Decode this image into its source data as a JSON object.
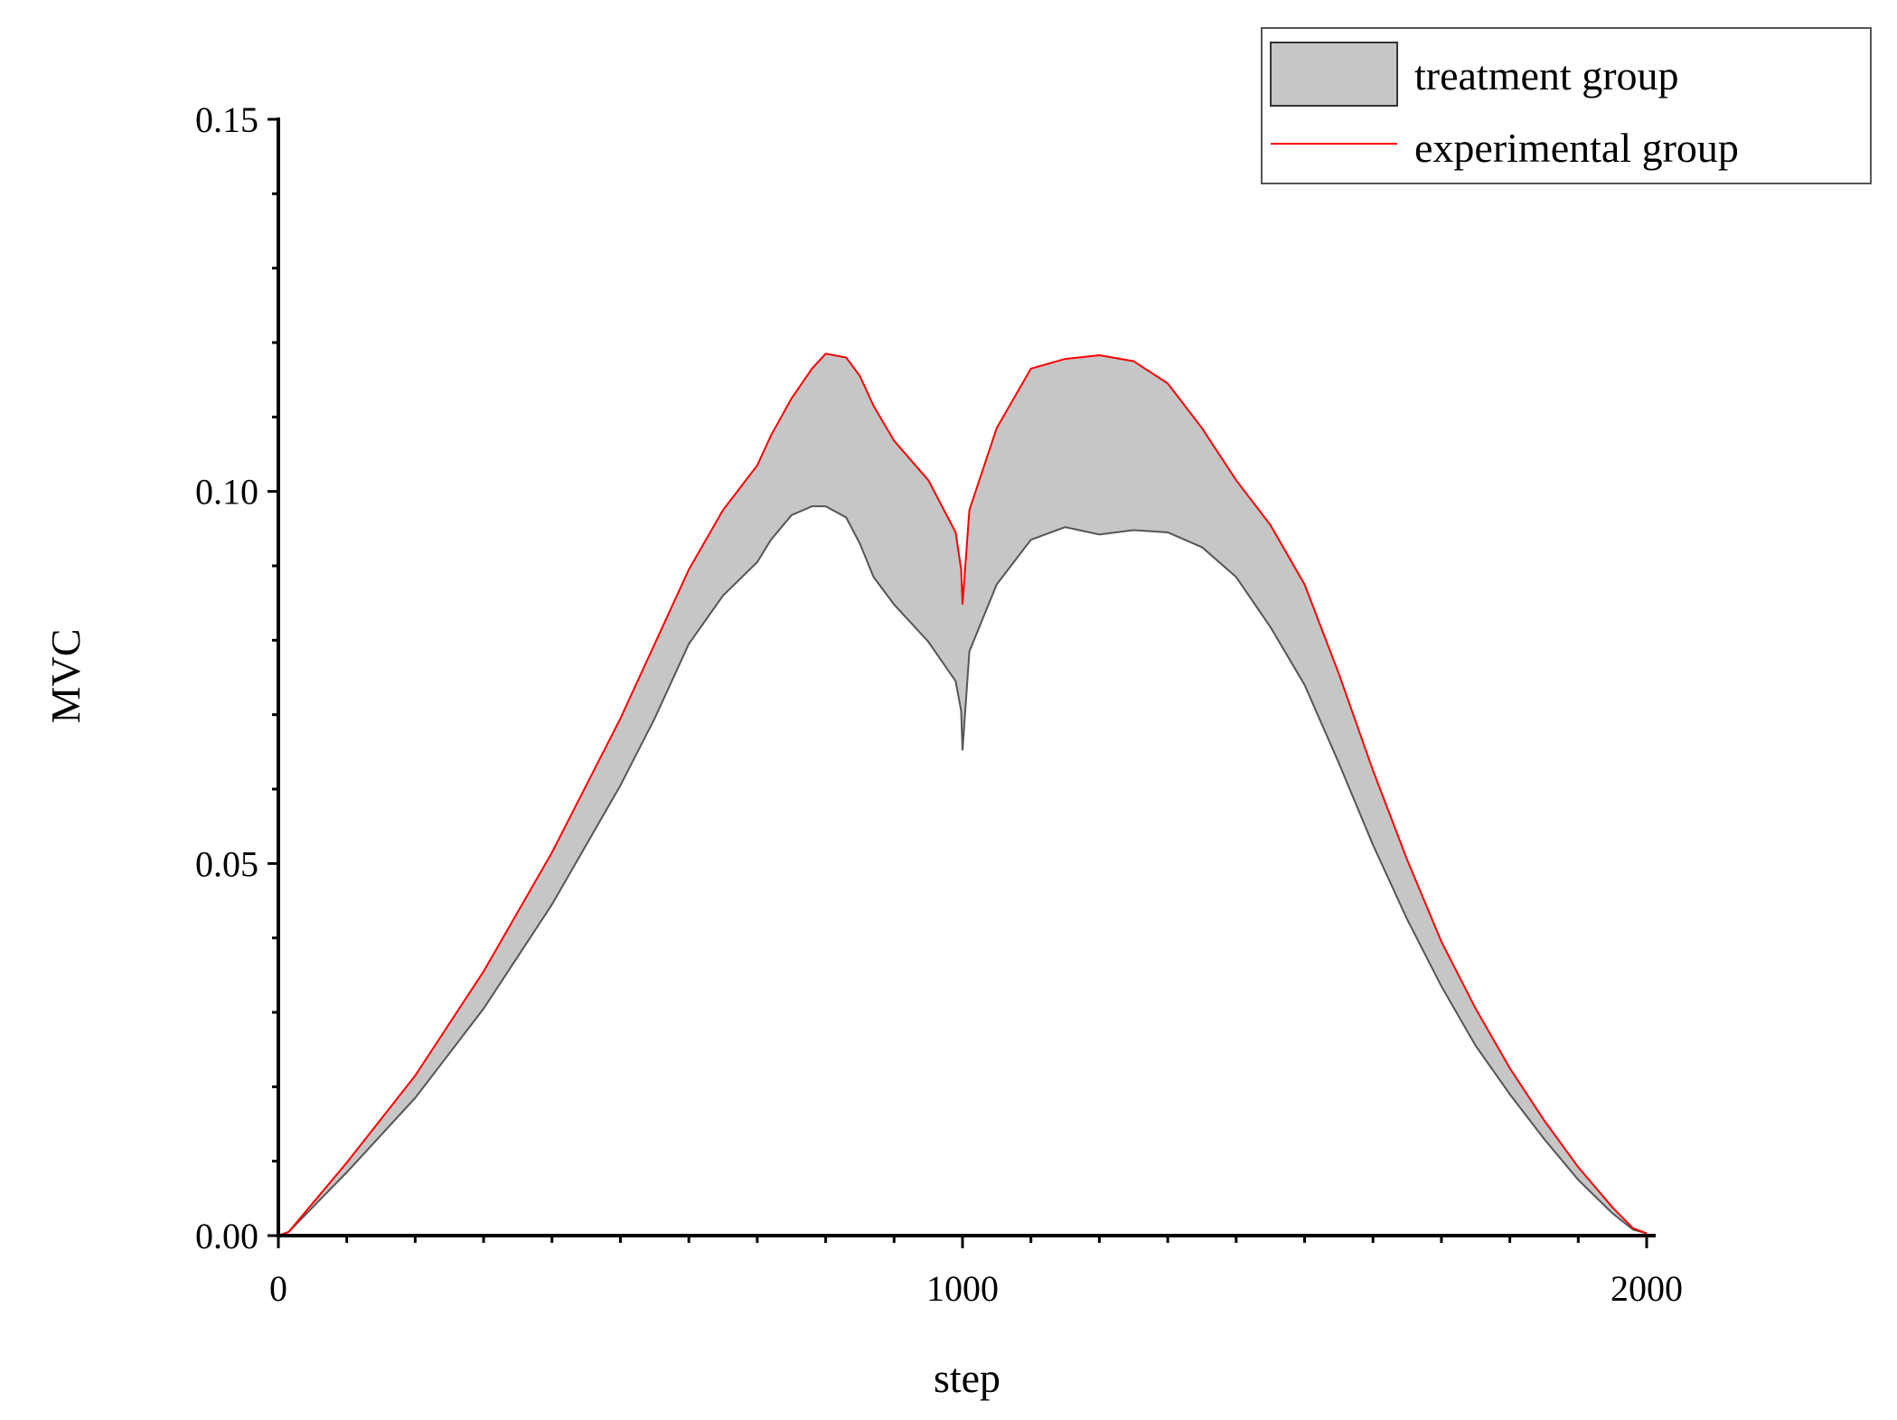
{
  "chart_data": {
    "type": "area",
    "title": "",
    "xlabel": "step",
    "ylabel": "MVC",
    "xlim": [
      0,
      2000
    ],
    "ylim": [
      0,
      0.15
    ],
    "x_ticks": [
      {
        "value": 0,
        "label": "0"
      },
      {
        "value": 1000,
        "label": "1000"
      },
      {
        "value": 2000,
        "label": "2000"
      }
    ],
    "y_ticks": [
      {
        "value": 0,
        "label": "0.00"
      },
      {
        "value": 0.05,
        "label": "0.05"
      },
      {
        "value": 0.1,
        "label": "0.10"
      },
      {
        "value": 0.15,
        "label": "0.15"
      }
    ],
    "x_minor_step": 100,
    "y_minor_step": 0.01,
    "grid": false,
    "legend_position": "top-right",
    "series": [
      {
        "name": "treatment group",
        "kind": "band",
        "fill": "#c6c6c6",
        "edge": "#555555",
        "x": [
          0,
          15,
          100,
          200,
          300,
          400,
          500,
          550,
          600,
          650,
          700,
          720,
          750,
          780,
          800,
          830,
          850,
          870,
          900,
          950,
          990,
          998,
          1000,
          1010,
          1050,
          1100,
          1150,
          1200,
          1250,
          1300,
          1350,
          1400,
          1450,
          1500,
          1550,
          1600,
          1650,
          1700,
          1750,
          1800,
          1850,
          1900,
          1950,
          1980,
          2000
        ],
        "lower": [
          0,
          0.0005,
          0.0085,
          0.0185,
          0.0305,
          0.0445,
          0.0605,
          0.0695,
          0.0795,
          0.086,
          0.0905,
          0.0935,
          0.0968,
          0.098,
          0.098,
          0.0965,
          0.093,
          0.0885,
          0.0848,
          0.0798,
          0.0745,
          0.0705,
          0.0652,
          0.0785,
          0.0875,
          0.0935,
          0.0952,
          0.0942,
          0.0948,
          0.0945,
          0.0925,
          0.0885,
          0.0818,
          0.074,
          0.0635,
          0.0525,
          0.0425,
          0.0335,
          0.0255,
          0.019,
          0.013,
          0.0075,
          0.003,
          0.0008,
          0.0003
        ],
        "upper": [
          0,
          0.0005,
          0.0098,
          0.0215,
          0.0355,
          0.0515,
          0.0695,
          0.0795,
          0.0895,
          0.0975,
          0.1035,
          0.1075,
          0.1125,
          0.1165,
          0.1185,
          0.118,
          0.1155,
          0.1115,
          0.1068,
          0.1015,
          0.0945,
          0.0895,
          0.0848,
          0.0975,
          0.1085,
          0.1165,
          0.1178,
          0.1183,
          0.1175,
          0.1145,
          0.1085,
          0.1015,
          0.0955,
          0.0875,
          0.0755,
          0.0625,
          0.0505,
          0.0395,
          0.0305,
          0.0225,
          0.0155,
          0.0092,
          0.0038,
          0.001,
          0.0003
        ]
      },
      {
        "name": "experimental group",
        "kind": "line",
        "color": "#ff0000",
        "x": [
          0,
          15,
          100,
          200,
          300,
          400,
          500,
          550,
          600,
          650,
          700,
          720,
          750,
          780,
          800,
          830,
          850,
          870,
          900,
          950,
          990,
          998,
          1000,
          1010,
          1050,
          1100,
          1150,
          1200,
          1250,
          1300,
          1350,
          1400,
          1450,
          1500,
          1550,
          1600,
          1650,
          1700,
          1750,
          1800,
          1850,
          1900,
          1950,
          1980,
          2000
        ],
        "y": [
          0,
          0.0005,
          0.0098,
          0.0215,
          0.0355,
          0.0515,
          0.0695,
          0.0795,
          0.0895,
          0.0975,
          0.1035,
          0.1075,
          0.1125,
          0.1165,
          0.1185,
          0.118,
          0.1155,
          0.1115,
          0.1068,
          0.1015,
          0.0945,
          0.0895,
          0.0848,
          0.0975,
          0.1085,
          0.1165,
          0.1178,
          0.1183,
          0.1175,
          0.1145,
          0.1085,
          0.1015,
          0.0955,
          0.0875,
          0.0755,
          0.0625,
          0.0505,
          0.0395,
          0.0305,
          0.0225,
          0.0155,
          0.0092,
          0.0038,
          0.001,
          0.0003
        ]
      }
    ]
  }
}
